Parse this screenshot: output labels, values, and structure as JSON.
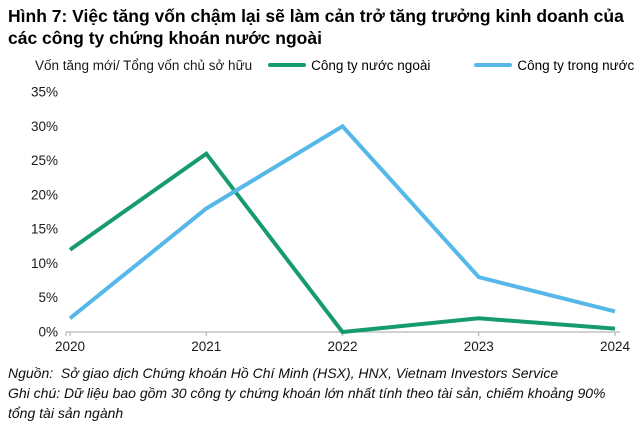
{
  "figure": {
    "title": "Hình 7: Việc tăng vốn chậm lại sẽ làm cản trở tăng trưởng kinh doanh của các công ty chứng khoán nước ngoài",
    "axis_caption": "Vốn tăng mới/ Tổng vốn chủ sở hữu",
    "notes": [
      "Nguồn:  Sở giao dịch Chứng khoán Hồ Chí Minh (HSX), HNX, Vietnam Investors Service",
      "Ghi chú: Dữ liệu bao gồm 30 công ty chứng khoán lớn nhất tính theo tài sản, chiếm khoảng 90% tổng tài sản ngành"
    ]
  },
  "chart_data": {
    "type": "line",
    "title": "Hình 7: Việc tăng vốn chậm lại sẽ làm cản trở tăng trưởng kinh doanh của các công ty chứng khoán nước ngoài",
    "ylabel": "Vốn tăng mới/ Tổng vốn chủ sở hữu",
    "xlabel": "",
    "categories": [
      "2020",
      "2021",
      "2022",
      "2023",
      "2024"
    ],
    "series": [
      {
        "name": "Công ty nước ngoài",
        "color": "#169b6f",
        "values": [
          12,
          26,
          0,
          2,
          0.5
        ]
      },
      {
        "name": "Công ty trong nước",
        "color": "#55b8e8",
        "values": [
          2,
          18,
          30,
          8,
          3
        ]
      }
    ],
    "ylim": [
      0,
      35
    ],
    "yticks": [
      0,
      5,
      10,
      15,
      20,
      25,
      30,
      35
    ],
    "ytick_suffix": "%",
    "grid": false,
    "legend_position": "top"
  },
  "colors": {
    "axis": "#b7b7b7",
    "tick_text": "#1a1a1a"
  }
}
